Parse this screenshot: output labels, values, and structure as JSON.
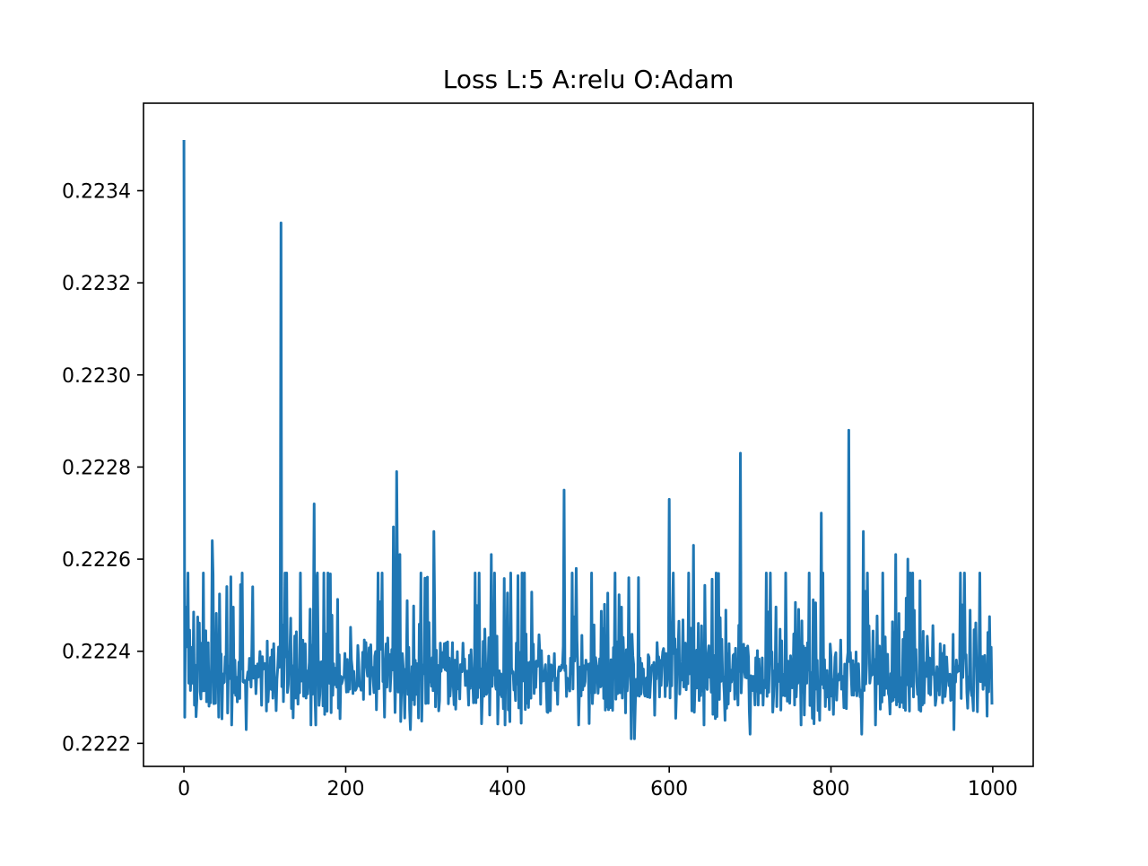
{
  "chart_data": {
    "type": "line",
    "title": "Loss L:5 A:relu O:Adam",
    "xlabel": "",
    "ylabel": "",
    "xlim": [
      -50,
      1050
    ],
    "ylim": [
      0.22215,
      0.22359
    ],
    "xticks": [
      0,
      200,
      400,
      600,
      800,
      1000
    ],
    "xtick_labels": [
      "0",
      "200",
      "400",
      "600",
      "800",
      "1000"
    ],
    "yticks": [
      0.2222,
      0.2224,
      0.2226,
      0.2228,
      0.223,
      0.2232,
      0.2234
    ],
    "ytick_labels": [
      "0.2222",
      "0.2224",
      "0.2226",
      "0.2228",
      "0.2230",
      "0.2232",
      "0.2234"
    ],
    "grid": false,
    "legend": "none",
    "series": [
      {
        "color": "#1f77b4",
        "x_start": 0,
        "x_step": 1,
        "count": 1000,
        "base": [
          0.22351,
          0.22228,
          0.22248,
          0.22235,
          0.22241,
          0.22274,
          0.22237,
          0.2224,
          0.22229,
          0.22233,
          0.22238,
          0.22235,
          0.22245,
          0.22232,
          0.22236,
          0.22229,
          0.22233,
          0.22244,
          0.22232,
          0.22242,
          0.22236,
          0.2223,
          0.22239,
          0.22233,
          0.22264,
          0.22233,
          0.22235,
          0.2224,
          0.2223,
          0.22234,
          0.22238,
          0.22232,
          0.22236,
          0.22231,
          0.22239,
          0.22233,
          0.22251,
          0.22229,
          0.2224,
          0.22232,
          0.22249,
          0.22231,
          0.22235,
          0.22228,
          0.22252,
          0.22233,
          0.22237,
          0.2223,
          0.22234,
          0.22238,
          0.22231,
          0.2224,
          0.22233,
          0.22257,
          0.22228,
          0.22238,
          0.22235,
          0.2223,
          0.22257,
          0.22229,
          0.22236,
          0.22254,
          0.22229,
          0.22244,
          0.22233,
          0.22237,
          0.2223,
          0.22236,
          0.22234,
          0.2223,
          0.22254,
          0.22232,
          0.22236,
          0.22231,
          0.22239,
          0.22233,
          0.22234,
          0.22236,
          0.22232,
          0.22238,
          0.22234,
          0.22233,
          0.22239,
          0.22232,
          0.22236,
          0.22234,
          0.2224,
          0.22233,
          0.22235,
          0.22232,
          0.22231,
          0.22235,
          0.22237,
          0.22233,
          0.22234,
          0.22236,
          0.22232,
          0.22238,
          0.22234,
          0.22233,
          0.22236,
          0.22235,
          0.22232,
          0.22237,
          0.22234,
          0.22236,
          0.22233,
          0.22235,
          0.22234,
          0.22236,
          0.22233,
          0.22238,
          0.22234,
          0.22235,
          0.22233,
          0.22236,
          0.22234,
          0.22237,
          0.22233,
          0.22235
        ],
        "spikes": [
          [
            35,
            0.22264
          ],
          [
            72,
            0.22257
          ],
          [
            85,
            0.22254
          ],
          [
            120,
            0.22333
          ],
          [
            127,
            0.22257
          ],
          [
            161,
            0.22272
          ],
          [
            165,
            0.22257
          ],
          [
            259,
            0.22267
          ],
          [
            263,
            0.22279
          ],
          [
            267,
            0.22261
          ],
          [
            280,
            0.22277
          ],
          [
            309,
            0.22266
          ],
          [
            380,
            0.22261
          ],
          [
            470,
            0.22275
          ],
          [
            485,
            0.22258
          ],
          [
            562,
            0.22256
          ],
          [
            600,
            0.22273
          ],
          [
            630,
            0.22263
          ],
          [
            688,
            0.22283
          ],
          [
            788,
            0.2227
          ],
          [
            822,
            0.22288
          ],
          [
            840,
            0.22266
          ],
          [
            880,
            0.22261
          ],
          [
            895,
            0.2226
          ]
        ],
        "dips": [
          [
            77,
            0.22223
          ],
          [
            280,
            0.22223
          ],
          [
            553,
            0.22221
          ],
          [
            557,
            0.22221
          ],
          [
            700,
            0.22222
          ],
          [
            838,
            0.22222
          ],
          [
            952,
            0.22223
          ]
        ]
      }
    ]
  }
}
